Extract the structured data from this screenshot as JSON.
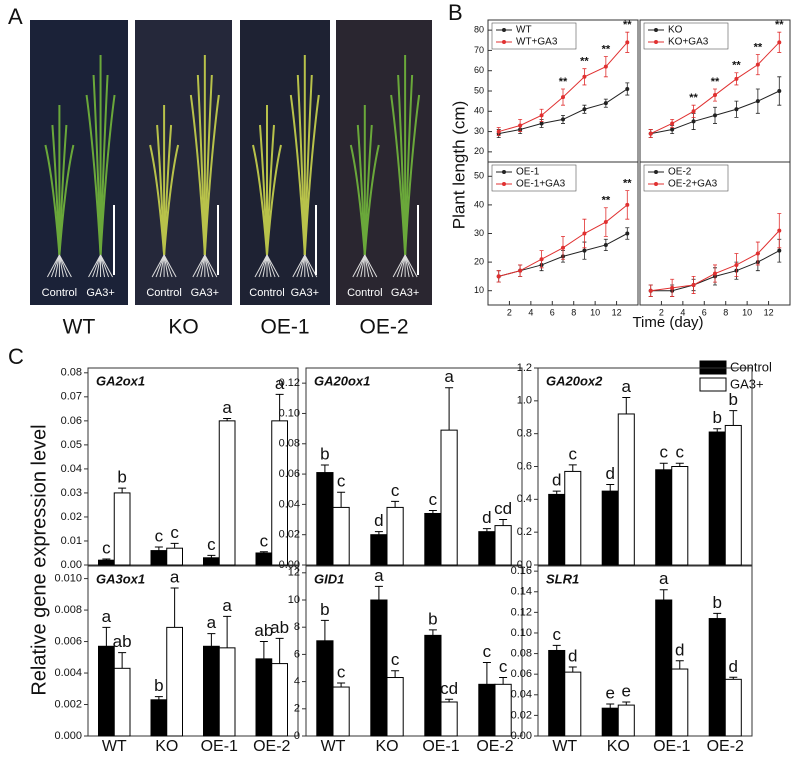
{
  "figure": {
    "panel_labels": [
      "A",
      "B",
      "C"
    ],
    "photos": [
      {
        "label": "WT",
        "captions": [
          "Control",
          "GA3+"
        ]
      },
      {
        "label": "KO",
        "captions": [
          "Control",
          "GA3+"
        ]
      },
      {
        "label": "OE-1",
        "captions": [
          "Control",
          "GA3+"
        ]
      },
      {
        "label": "OE-2",
        "captions": [
          "Control",
          "GA3+"
        ]
      }
    ],
    "plant_length_label": "Plant length (cm)",
    "time_label": "Time (day)",
    "expression_label": "Relative gene expression level",
    "legend": [
      {
        "name": "Control",
        "color": "#000000"
      },
      {
        "name": "GA3+",
        "color": "#ffffff"
      }
    ]
  },
  "chart_data": [
    {
      "type": "line",
      "x": [
        1,
        3,
        5,
        7,
        9,
        11,
        13
      ],
      "xlim": [
        0,
        14
      ],
      "ylim": [
        15,
        85
      ],
      "yticks": [
        20,
        30,
        40,
        50,
        60,
        70,
        80
      ],
      "series": [
        {
          "name": "WT",
          "color": "#222222",
          "values": [
            29,
            31,
            34,
            36,
            41,
            44,
            51
          ],
          "errors": [
            2,
            2,
            2,
            2,
            2,
            2,
            3
          ]
        },
        {
          "name": "WT+GA3",
          "color": "#e03030",
          "values": [
            30,
            33,
            38,
            47,
            57,
            62,
            74
          ],
          "errors": [
            2,
            3,
            3,
            4,
            4,
            5,
            5
          ]
        }
      ],
      "annotations": [
        {
          "x": 7,
          "text": "**"
        },
        {
          "x": 9,
          "text": "**"
        },
        {
          "x": 11,
          "text": "**"
        },
        {
          "x": 13,
          "text": "**"
        }
      ]
    },
    {
      "type": "line",
      "x": [
        1,
        3,
        5,
        7,
        9,
        11,
        13
      ],
      "xlim": [
        0,
        14
      ],
      "ylim": [
        15,
        85
      ],
      "series": [
        {
          "name": "KO",
          "color": "#222222",
          "values": [
            29,
            31,
            35,
            38,
            41,
            45,
            50
          ],
          "errors": [
            2,
            2,
            4,
            4,
            4,
            6,
            7
          ]
        },
        {
          "name": "KO+GA3",
          "color": "#e03030",
          "values": [
            29,
            34,
            40,
            48,
            56,
            63,
            74
          ],
          "errors": [
            2,
            2,
            3,
            3,
            3,
            5,
            5
          ]
        }
      ],
      "annotations": [
        {
          "x": 5,
          "text": "**"
        },
        {
          "x": 7,
          "text": "**"
        },
        {
          "x": 9,
          "text": "**"
        },
        {
          "x": 11,
          "text": "**"
        },
        {
          "x": 13,
          "text": "**"
        }
      ]
    },
    {
      "type": "line",
      "x": [
        1,
        3,
        5,
        7,
        9,
        11,
        13
      ],
      "xlim": [
        0,
        14
      ],
      "ylim": [
        5,
        55
      ],
      "yticks": [
        10,
        20,
        30,
        40,
        50
      ],
      "xticks": [
        2,
        4,
        6,
        8,
        10,
        12
      ],
      "series": [
        {
          "name": "OE-1",
          "color": "#222222",
          "values": [
            15,
            17,
            19,
            22,
            24,
            26,
            30
          ],
          "errors": [
            2,
            2,
            2,
            2,
            3,
            2,
            2
          ]
        },
        {
          "name": "OE-1+GA3",
          "color": "#e03030",
          "values": [
            15,
            17,
            21,
            25,
            30,
            34,
            40
          ],
          "errors": [
            2,
            2,
            3,
            4,
            5,
            5,
            5
          ]
        }
      ],
      "annotations": [
        {
          "x": 11,
          "text": "**"
        },
        {
          "x": 13,
          "text": "**"
        }
      ]
    },
    {
      "type": "line",
      "x": [
        1,
        3,
        5,
        7,
        9,
        11,
        13
      ],
      "xlim": [
        0,
        14
      ],
      "ylim": [
        5,
        55
      ],
      "xticks": [
        2,
        4,
        6,
        8,
        10,
        12
      ],
      "series": [
        {
          "name": "OE-2",
          "color": "#222222",
          "values": [
            10,
            10,
            12,
            15,
            17,
            20,
            24
          ],
          "errors": [
            2,
            2,
            2,
            3,
            3,
            3,
            4
          ]
        },
        {
          "name": "OE-2+GA3",
          "color": "#e03030",
          "values": [
            10,
            11,
            12,
            16,
            19,
            23,
            31
          ],
          "errors": [
            2,
            3,
            3,
            3,
            4,
            4,
            6
          ]
        }
      ],
      "annotations": []
    },
    {
      "type": "bar",
      "title": "GA2ox1",
      "ylim": [
        0,
        0.082
      ],
      "yticks": [
        {
          "value": 0,
          "label": "0.00"
        },
        {
          "value": 0.01,
          "label": "0.01"
        },
        {
          "value": 0.02,
          "label": "0.02"
        },
        {
          "value": 0.03,
          "label": "0.03"
        },
        {
          "value": 0.04,
          "label": "0.04"
        },
        {
          "value": 0.05,
          "label": "0.05"
        },
        {
          "value": 0.06,
          "label": "0.06"
        },
        {
          "value": 0.07,
          "label": "0.07"
        },
        {
          "value": 0.08,
          "label": "0.08"
        }
      ],
      "series": [
        {
          "color": "#000000",
          "values": [
            0.002,
            0.006,
            0.003,
            0.005
          ],
          "errors": [
            0.0005,
            0.0015,
            0.001,
            0.0005
          ],
          "letters": [
            "c",
            "c",
            "c",
            "c"
          ]
        },
        {
          "color": "#ffffff",
          "values": [
            0.03,
            0.007,
            0.06,
            0.06
          ],
          "errors": [
            0.002,
            0.002,
            0.001,
            0.011
          ],
          "letters": [
            "b",
            "c",
            "a",
            "a"
          ]
        }
      ]
    },
    {
      "type": "bar",
      "title": "GA20ox1",
      "ylim": [
        0,
        0.13
      ],
      "yticks": [
        {
          "value": 0,
          "label": "0.00"
        },
        {
          "value": 0.02,
          "label": "0.02"
        },
        {
          "value": 0.04,
          "label": "0.04"
        },
        {
          "value": 0.06,
          "label": "0.06"
        },
        {
          "value": 0.08,
          "label": "0.08"
        },
        {
          "value": 0.1,
          "label": "0.10"
        },
        {
          "value": 0.12,
          "label": "0.12"
        }
      ],
      "series": [
        {
          "color": "#000000",
          "values": [
            0.061,
            0.02,
            0.034,
            0.022
          ],
          "errors": [
            0.005,
            0.002,
            0.002,
            0.002
          ],
          "letters": [
            "b",
            "d",
            "c",
            "d"
          ]
        },
        {
          "color": "#ffffff",
          "values": [
            0.038,
            0.038,
            0.089,
            0.026
          ],
          "errors": [
            0.01,
            0.004,
            0.028,
            0.004
          ],
          "letters": [
            "c",
            "c",
            "a",
            "cd"
          ]
        }
      ]
    },
    {
      "type": "bar",
      "title": "GA20ox2",
      "ylim": [
        0,
        1.2
      ],
      "yticks": [
        {
          "value": 0,
          "label": "0.0"
        },
        {
          "value": 0.2,
          "label": "0.2"
        },
        {
          "value": 0.4,
          "label": "0.4"
        },
        {
          "value": 0.6,
          "label": "0.6"
        },
        {
          "value": 0.8,
          "label": "0.8"
        },
        {
          "value": 1,
          "label": "1.0"
        },
        {
          "value": 1.2,
          "label": "1.2"
        }
      ],
      "series": [
        {
          "color": "#000000",
          "values": [
            0.43,
            0.45,
            0.58,
            0.81
          ],
          "errors": [
            0.02,
            0.04,
            0.04,
            0.02
          ],
          "letters": [
            "d",
            "d",
            "c",
            "b"
          ]
        },
        {
          "color": "#ffffff",
          "values": [
            0.57,
            0.92,
            0.6,
            0.85
          ],
          "errors": [
            0.04,
            0.1,
            0.02,
            0.09
          ],
          "letters": [
            "c",
            "a",
            "c",
            "b"
          ]
        }
      ]
    },
    {
      "type": "bar",
      "title": "GA3ox1",
      "ylim": [
        0,
        0.0108
      ],
      "categories": [
        "WT",
        "KO",
        "OE-1",
        "OE-2"
      ],
      "yticks": [
        {
          "value": 0,
          "label": "0.000"
        },
        {
          "value": 0.002,
          "label": "0.002"
        },
        {
          "value": 0.004,
          "label": "0.004"
        },
        {
          "value": 0.006,
          "label": "0.006"
        },
        {
          "value": 0.008,
          "label": "0.008"
        },
        {
          "value": 0.01,
          "label": "0.010"
        }
      ],
      "series": [
        {
          "color": "#000000",
          "values": [
            0.0057,
            0.0023,
            0.0057,
            0.0049
          ],
          "errors": [
            0.0012,
            0.0002,
            0.0008,
            0.0011
          ],
          "letters": [
            "a",
            "b",
            "a",
            "ab"
          ]
        },
        {
          "color": "#ffffff",
          "values": [
            0.0043,
            0.0069,
            0.0056,
            0.0046
          ],
          "errors": [
            0.001,
            0.0025,
            0.002,
            0.0016
          ],
          "letters": [
            "ab",
            "a",
            "a",
            "ab"
          ]
        }
      ]
    },
    {
      "type": "bar",
      "title": "GID1",
      "ylim": [
        0,
        12.5
      ],
      "categories": [
        "WT",
        "KO",
        "OE-1",
        "OE-2"
      ],
      "yticks": [
        0,
        2,
        4,
        6,
        8,
        10,
        12
      ],
      "series": [
        {
          "color": "#000000",
          "values": [
            7,
            10,
            7.4,
            3.8
          ],
          "errors": [
            1.5,
            1,
            0.4,
            1.6
          ],
          "letters": [
            "b",
            "a",
            "b",
            "c"
          ]
        },
        {
          "color": "#ffffff",
          "values": [
            3.6,
            4.3,
            2.5,
            3.8
          ],
          "errors": [
            0.3,
            0.5,
            0.2,
            0.5
          ],
          "letters": [
            "c",
            "c",
            "cd",
            "c"
          ]
        }
      ]
    },
    {
      "type": "bar",
      "title": "SLR1",
      "ylim": [
        0,
        0.165
      ],
      "categories": [
        "WT",
        "KO",
        "OE-1",
        "OE-2"
      ],
      "yticks": [
        {
          "value": 0,
          "label": "0.00"
        },
        {
          "value": 0.02,
          "label": "0.02"
        },
        {
          "value": 0.04,
          "label": "0.04"
        },
        {
          "value": 0.06,
          "label": "0.06"
        },
        {
          "value": 0.08,
          "label": "0.08"
        },
        {
          "value": 0.1,
          "label": "0.10"
        },
        {
          "value": 0.12,
          "label": "0.12"
        },
        {
          "value": 0.14,
          "label": "0.14"
        },
        {
          "value": 0.16,
          "label": "0.16"
        }
      ],
      "series": [
        {
          "color": "#000000",
          "values": [
            0.083,
            0.027,
            0.132,
            0.114
          ],
          "errors": [
            0.005,
            0.004,
            0.01,
            0.005
          ],
          "letters": [
            "c",
            "e",
            "a",
            "b"
          ]
        },
        {
          "color": "#ffffff",
          "values": [
            0.062,
            0.03,
            0.065,
            0.055
          ],
          "errors": [
            0.005,
            0.003,
            0.008,
            0.002
          ],
          "letters": [
            "d",
            "e",
            "d",
            "d"
          ]
        }
      ]
    }
  ]
}
